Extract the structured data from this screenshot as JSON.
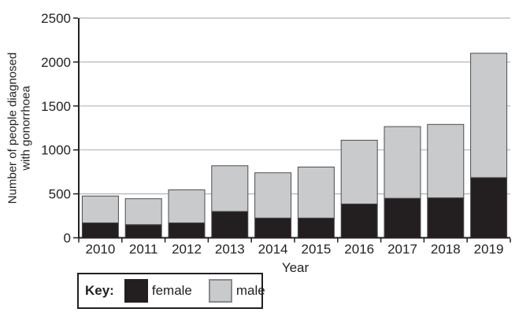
{
  "chart_data": {
    "type": "bar",
    "stacked": true,
    "title": "",
    "categories": [
      "2010",
      "2011",
      "2012",
      "2013",
      "2014",
      "2015",
      "2016",
      "2017",
      "2018",
      "2019"
    ],
    "series": [
      {
        "name": "female",
        "values": [
          170,
          150,
          170,
          300,
          225,
          225,
          385,
          450,
          455,
          685
        ],
        "color": "#231f20"
      },
      {
        "name": "male",
        "values": [
          305,
          295,
          375,
          520,
          515,
          580,
          725,
          815,
          835,
          1415
        ],
        "color": "#c9cacb"
      }
    ],
    "xlabel": "Year",
    "ylabel": "Number of people diagnosed\nwith gonorrhoea",
    "ylim": [
      0,
      2500
    ],
    "yticks": [
      0,
      500,
      1000,
      1500,
      2000,
      2500
    ],
    "grid": "horizontal",
    "legend": {
      "label": "Key:",
      "position": "bottom-left",
      "entries": [
        {
          "label": "female",
          "color": "#231f20"
        },
        {
          "label": "male",
          "color": "#c9cacb"
        }
      ]
    },
    "style": {
      "bar_border": "#4d4d4f",
      "gridline": "#b5b5b5",
      "axis": "#231f20",
      "text": "#231f20"
    }
  }
}
